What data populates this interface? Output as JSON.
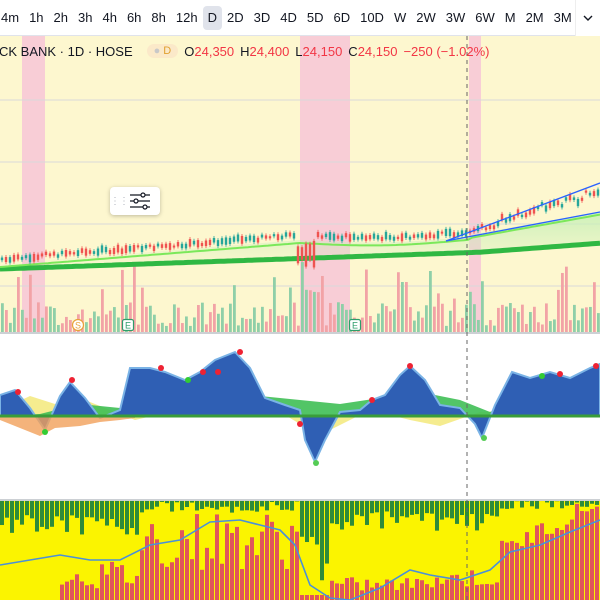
{
  "toolbar": {
    "timeframes": [
      {
        "label": "4m",
        "active": false
      },
      {
        "label": "1h",
        "active": false
      },
      {
        "label": "2h",
        "active": false
      },
      {
        "label": "3h",
        "active": false
      },
      {
        "label": "4h",
        "active": false
      },
      {
        "label": "6h",
        "active": false
      },
      {
        "label": "8h",
        "active": false
      },
      {
        "label": "12h",
        "active": false
      },
      {
        "label": "D",
        "active": true
      },
      {
        "label": "2D",
        "active": false
      },
      {
        "label": "3D",
        "active": false
      },
      {
        "label": "4D",
        "active": false
      },
      {
        "label": "5D",
        "active": false
      },
      {
        "label": "6D",
        "active": false
      },
      {
        "label": "10D",
        "active": false
      },
      {
        "label": "W",
        "active": false
      },
      {
        "label": "2W",
        "active": false
      },
      {
        "label": "3W",
        "active": false
      },
      {
        "label": "6W",
        "active": false
      },
      {
        "label": "M",
        "active": false
      },
      {
        "label": "2M",
        "active": false
      },
      {
        "label": "3M",
        "active": false
      }
    ],
    "more_icon": "chevron-down-icon"
  },
  "legend": {
    "symbol": "CK BANK · 1D · HOSE",
    "delay_badge": "D",
    "open_key": "O",
    "open": "24,350",
    "high_key": "H",
    "high": "24,400",
    "low_key": "L",
    "low": "24,150",
    "close_key": "C",
    "close": "24,150",
    "change": "−250 (−1.02%)"
  },
  "event_markers": [
    "S",
    "E",
    "E"
  ],
  "colors": {
    "up": "#26a69a",
    "down": "#ef5350",
    "ma_fast": "#7be85a",
    "ma_slow": "#2fb843",
    "trendline": "#2962ff",
    "session_bg": "#fdf7cf",
    "highlight_bg": "#f8cdd6",
    "osc_blue": "#2f5fb4",
    "osc_green": "#3fbf55",
    "osc_yellow": "#f1e56a",
    "bar_green": "#2e8b3a",
    "bar_red": "#e0565b",
    "bar_yellow": "#fbf400",
    "signal_line": "#4a90d9"
  },
  "tool_widget": {
    "drag_icon": "drag-handle-icon",
    "settings_icon": "sliders-settings-icon"
  }
}
